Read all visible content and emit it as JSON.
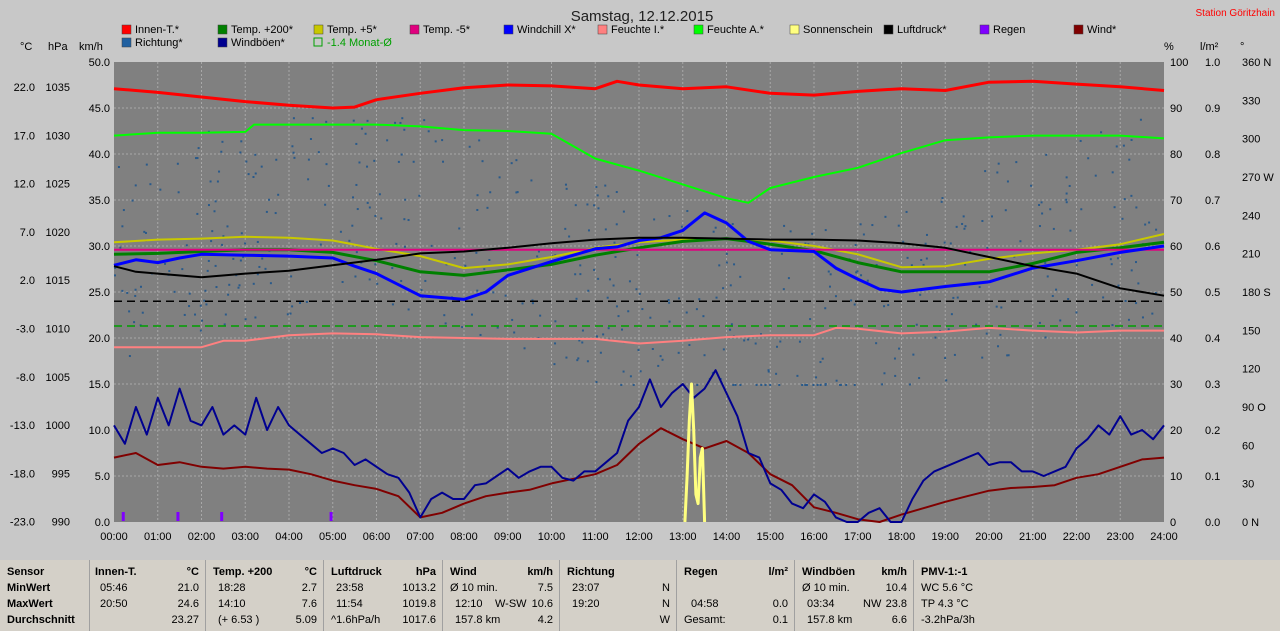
{
  "title": "Samstag, 12.12.2015",
  "station": "Station Göritzhain",
  "legend": [
    {
      "label": "Innen-T.*",
      "color": "#ff0000"
    },
    {
      "label": "Temp. +200*",
      "color": "#008000"
    },
    {
      "label": "Temp. +5*",
      "color": "#c8c800"
    },
    {
      "label": "Temp. -5*",
      "color": "#e0007f"
    },
    {
      "label": "Windchill X*",
      "color": "#0000ff"
    },
    {
      "label": "Feuchte I.*",
      "color": "#ff8080"
    },
    {
      "label": "Feuchte A.*",
      "color": "#00ff00"
    },
    {
      "label": "Sonnenschein",
      "color": "#ffff80"
    },
    {
      "label": "Luftdruck*",
      "color": "#000000"
    },
    {
      "label": "Regen",
      "color": "#8000ff"
    },
    {
      "label": "Wind*",
      "color": "#800000"
    },
    {
      "label": "Richtung*",
      "color": "#2060a0"
    },
    {
      "label": "Windböen*",
      "color": "#000090"
    },
    {
      "label": "-1.4 Monat-Ø",
      "color": "#00a000",
      "hollow": true
    }
  ],
  "axes": {
    "unit_c": "°C",
    "unit_hpa": "hPa",
    "unit_kmh": "km/h",
    "unit_pct": "%",
    "unit_rain": "l/m²",
    "unit_deg": "°",
    "temp_ticks": [
      "22.0",
      "17.0",
      "12.0",
      "7.0",
      "2.0",
      "-3.0",
      "-8.0",
      "-13.0",
      "-18.0",
      "-23.0"
    ],
    "hpa_ticks": [
      "1035",
      "1030",
      "1025",
      "1020",
      "1015",
      "1010",
      "1005",
      "1000",
      "995",
      "990"
    ],
    "kmh_ticks": [
      "50.0",
      "45.0",
      "40.0",
      "35.0",
      "30.0",
      "25.0",
      "20.0",
      "15.0",
      "10.0",
      "5.0",
      "0.0"
    ],
    "pct_ticks": [
      "100",
      "90",
      "80",
      "70",
      "60",
      "50",
      "40",
      "30",
      "20",
      "10",
      "0"
    ],
    "rain_ticks": [
      "1.0",
      "0.9",
      "0.8",
      "0.7",
      "0.6",
      "0.5",
      "0.4",
      "0.3",
      "0.2",
      "0.1",
      "0.0"
    ],
    "deg_ticks": [
      "360 N",
      "330",
      "300",
      "270 W",
      "240",
      "210",
      "180 S",
      "150",
      "120",
      "90 O",
      "60",
      "30",
      "0 N"
    ],
    "x_ticks": [
      "00:00",
      "01:00",
      "02:00",
      "03:00",
      "04:00",
      "05:00",
      "06:00",
      "07:00",
      "08:00",
      "09:00",
      "10:00",
      "11:00",
      "12:00",
      "13:00",
      "14:00",
      "15:00",
      "16:00",
      "17:00",
      "18:00",
      "19:00",
      "20:00",
      "21:00",
      "22:00",
      "23:00",
      "24:00"
    ]
  },
  "chart_data": {
    "type": "line",
    "x_unit": "hour",
    "x_range": [
      0,
      24
    ],
    "kmh_range": [
      0,
      50
    ],
    "series": [
      {
        "name": "Innen-T.*",
        "scale": "kmh",
        "color": "#ff0000",
        "width": 3,
        "x": [
          0,
          1,
          2,
          3,
          4,
          5,
          5.5,
          6,
          7,
          8,
          9,
          10,
          11,
          11.5,
          12,
          13,
          14,
          15,
          16,
          17,
          18,
          19,
          20,
          21,
          22,
          23,
          24
        ],
        "y": [
          47.1,
          46.7,
          46.2,
          45.7,
          45.3,
          45.0,
          45.1,
          45.9,
          46.6,
          47.2,
          47.5,
          47.4,
          47.1,
          47.9,
          47.5,
          47.1,
          47.3,
          46.6,
          46.4,
          46.8,
          47.1,
          46.9,
          47.8,
          47.9,
          47.6,
          47.3,
          46.9
        ]
      },
      {
        "name": "Feuchte A.*",
        "scale": "kmh",
        "color": "#00ff00",
        "width": 2,
        "x": [
          0,
          1,
          2,
          3,
          3.2,
          4,
          5,
          6,
          7,
          8,
          9,
          10,
          11,
          12,
          13,
          14,
          14.5,
          15,
          16,
          17,
          18,
          19,
          20,
          21,
          22,
          23,
          24
        ],
        "y": [
          42.0,
          42.3,
          42.3,
          42.4,
          43.2,
          43.2,
          43.2,
          43.2,
          43.0,
          42.6,
          42.5,
          42.2,
          39.5,
          38.2,
          36.7,
          35.2,
          34.7,
          36.3,
          37.5,
          38.5,
          40.1,
          41.5,
          41.8,
          42.0,
          42.0,
          42.0,
          41.7
        ]
      },
      {
        "name": "Temp. +5*",
        "scale": "kmh",
        "color": "#c8c800",
        "width": 2,
        "x": [
          0,
          1,
          2,
          3,
          4,
          5,
          6,
          7,
          8,
          9,
          10,
          11,
          12,
          13,
          14,
          15,
          16,
          17,
          18,
          19,
          20,
          21,
          22,
          23,
          24
        ],
        "y": [
          30.4,
          30.7,
          30.8,
          31.0,
          30.9,
          30.6,
          29.7,
          28.9,
          27.6,
          28.0,
          28.8,
          29.8,
          30.4,
          30.7,
          30.8,
          30.6,
          30.0,
          29.1,
          27.7,
          27.8,
          28.6,
          29.2,
          29.6,
          30.2,
          31.3
        ]
      },
      {
        "name": "Temp. +200*",
        "scale": "kmh",
        "color": "#008000",
        "width": 3,
        "x": [
          0,
          1,
          2,
          3,
          4,
          5,
          6,
          7,
          8,
          9,
          10,
          11,
          12,
          13,
          14,
          15,
          16,
          17,
          18,
          19,
          20,
          21,
          22,
          23,
          24
        ],
        "y": [
          29.1,
          29.2,
          29.4,
          29.6,
          29.6,
          29.3,
          28.4,
          27.2,
          26.8,
          27.4,
          28.0,
          29.0,
          29.8,
          30.5,
          30.8,
          30.2,
          29.5,
          28.2,
          27.2,
          27.2,
          27.2,
          28.1,
          29.3,
          29.8,
          30.4
        ]
      },
      {
        "name": "Temp. -5*",
        "scale": "kmh",
        "color": "#e0007f",
        "width": 2,
        "x": [
          0,
          24
        ],
        "y": [
          29.6,
          29.6
        ]
      },
      {
        "name": "Windchill X*",
        "scale": "kmh",
        "color": "#0000ff",
        "width": 3,
        "x": [
          0,
          0.5,
          1,
          1.5,
          2,
          3,
          4,
          5,
          5.5,
          6,
          7,
          8,
          8.5,
          9,
          10,
          11,
          11.5,
          12,
          12.5,
          13,
          13.5,
          14,
          14.5,
          15,
          16,
          16.5,
          17,
          17.5,
          18,
          18.5,
          19,
          20,
          21,
          22,
          23,
          24
        ],
        "y": [
          27.9,
          28.5,
          28.2,
          28.7,
          29.1,
          29.0,
          28.9,
          28.7,
          27.8,
          27.0,
          24.6,
          24.2,
          25.0,
          26.8,
          28.3,
          29.7,
          29.9,
          30.6,
          30.9,
          31.7,
          33.6,
          32.5,
          30.5,
          29.6,
          29.4,
          27.6,
          26.4,
          25.3,
          25.0,
          25.3,
          25.6,
          26.1,
          27.6,
          28.4,
          29.3,
          30.0
        ]
      },
      {
        "name": "Feuchte I.*",
        "scale": "kmh",
        "color": "#ff8080",
        "width": 2,
        "x": [
          0,
          1,
          2,
          2.5,
          3,
          4,
          5,
          6,
          7,
          8,
          9,
          10,
          11,
          12,
          13,
          14,
          15,
          16,
          16.5,
          17,
          18,
          19,
          20,
          21,
          22,
          23,
          24
        ],
        "y": [
          19.0,
          19.0,
          19.0,
          19.7,
          19.7,
          20.3,
          20.5,
          20.4,
          20.1,
          20.0,
          19.9,
          19.9,
          19.9,
          19.4,
          19.7,
          20.1,
          20.3,
          20.3,
          21.1,
          21.0,
          20.5,
          20.7,
          21.1,
          20.8,
          20.6,
          20.8,
          20.8
        ]
      },
      {
        "name": "Luftdruck*",
        "scale": "kmh",
        "color": "#000000",
        "width": 2,
        "x": [
          0,
          0.5,
          1,
          2,
          3,
          4,
          5,
          6,
          7,
          8,
          9,
          10,
          11,
          12,
          13,
          14,
          15,
          16,
          17,
          18,
          19,
          20,
          21,
          22,
          23,
          24
        ],
        "y": [
          27.8,
          27.2,
          27.0,
          26.6,
          27.0,
          27.3,
          27.9,
          28.5,
          29.2,
          29.4,
          29.8,
          30.3,
          30.7,
          30.9,
          30.9,
          30.8,
          30.7,
          30.7,
          30.6,
          30.3,
          29.8,
          28.8,
          27.8,
          27.0,
          25.4,
          24.6
        ]
      },
      {
        "name": "Wind*",
        "scale": "kmh",
        "color": "#800000",
        "width": 2,
        "x": [
          0,
          0.5,
          1,
          1.5,
          2,
          2.5,
          3,
          3.5,
          4,
          4.5,
          5,
          5.5,
          6,
          6.5,
          7,
          7.5,
          8,
          8.5,
          9,
          9.5,
          10,
          10.5,
          11,
          11.5,
          12,
          12.5,
          13,
          13.5,
          14,
          14.5,
          15,
          15.5,
          16,
          16.5,
          17,
          17.5,
          18,
          18.5,
          19,
          19.5,
          20,
          20.5,
          21,
          21.5,
          22,
          22.5,
          23,
          23.5,
          24
        ],
        "y": [
          7.0,
          7.5,
          6.2,
          6.5,
          6.0,
          5.8,
          6.0,
          5.8,
          5.7,
          5.2,
          4.5,
          4.0,
          3.6,
          2.8,
          0.5,
          1.0,
          2.0,
          2.8,
          3.2,
          3.5,
          4.2,
          4.7,
          5.2,
          6.2,
          8.5,
          10.2,
          9.0,
          8.0,
          8.8,
          7.5,
          5.2,
          4.0,
          1.6,
          1.0,
          0.3,
          0.0,
          0.8,
          1.5,
          2.2,
          2.8,
          3.4,
          3.7,
          3.8,
          4.0,
          4.8,
          5.2,
          6.0,
          6.8,
          7.0
        ]
      },
      {
        "name": "Windböen*",
        "scale": "kmh",
        "color": "#000090",
        "width": 2,
        "x": [
          0,
          0.25,
          0.5,
          0.75,
          1,
          1.25,
          1.5,
          1.75,
          2,
          2.25,
          2.5,
          2.75,
          3,
          3.25,
          3.5,
          3.75,
          4,
          4.25,
          4.5,
          4.75,
          5,
          5.25,
          5.5,
          5.75,
          6,
          6.25,
          6.5,
          6.75,
          7,
          7.25,
          7.5,
          7.75,
          8,
          8.25,
          8.5,
          8.75,
          9,
          9.25,
          9.5,
          9.75,
          10,
          10.25,
          10.5,
          10.75,
          11,
          11.25,
          11.5,
          11.75,
          12,
          12.25,
          12.5,
          12.75,
          13,
          13.25,
          13.5,
          13.75,
          14,
          14.25,
          14.5,
          14.75,
          15,
          15.25,
          15.5,
          15.75,
          16,
          16.25,
          16.5,
          16.75,
          17,
          17.25,
          17.5,
          17.75,
          18,
          18.25,
          18.5,
          18.75,
          19,
          19.25,
          19.5,
          19.75,
          20,
          20.25,
          20.5,
          20.75,
          21,
          21.25,
          21.5,
          21.75,
          22,
          22.25,
          22.5,
          22.75,
          23,
          23.25,
          23.5,
          23.75,
          24
        ],
        "y": [
          10.5,
          8.5,
          12.5,
          9.5,
          13.5,
          10.5,
          14.5,
          11.0,
          10.5,
          12.5,
          9.5,
          10.5,
          9.5,
          13.5,
          10.0,
          12.5,
          10.5,
          9.5,
          8.5,
          7.5,
          8.0,
          7.5,
          6.2,
          6.8,
          6.0,
          5.2,
          4.8,
          3.2,
          0.5,
          2.5,
          3.2,
          2.5,
          2.5,
          4.0,
          4.2,
          5.0,
          5.8,
          4.8,
          5.5,
          6.0,
          6.0,
          4.8,
          4.5,
          5.5,
          5.5,
          6.5,
          7.5,
          11.0,
          12.5,
          15.5,
          12.5,
          14.0,
          15.0,
          13.5,
          14.5,
          16.5,
          14.0,
          11.5,
          7.5,
          7.0,
          4.2,
          3.5,
          2.0,
          1.5,
          3.0,
          2.2,
          0.5,
          0.0,
          0.0,
          1.0,
          1.5,
          0.0,
          0.0,
          2.5,
          4.5,
          5.5,
          6.0,
          6.5,
          7.0,
          7.5,
          6.2,
          6.5,
          6.5,
          5.5,
          5.5,
          5.0,
          5.5,
          6.0,
          8.0,
          9.0,
          10.5,
          9.5,
          11.5,
          9.5,
          10.0,
          9.0,
          10.5
        ]
      },
      {
        "name": "Sonnenschein",
        "scale": "kmh",
        "color": "#ffff80",
        "width": 3,
        "x": [
          13.05,
          13.1,
          13.15,
          13.2,
          13.25,
          13.3,
          13.35,
          13.4,
          13.45,
          13.5
        ],
        "y": [
          0,
          5,
          11,
          15,
          10,
          3,
          2,
          7,
          8,
          0
        ]
      }
    ],
    "dashed_lines": [
      {
        "name": "Monat-Ø",
        "scale": "kmh",
        "y": 21.3,
        "color": "#00a000"
      },
      {
        "name": "Reference",
        "scale": "kmh",
        "y": 24.0,
        "color": "#000000"
      }
    ],
    "rain_marks_hours": [
      0.2,
      1.45,
      2.45,
      4.95
    ],
    "direction_dots_note": "scatter of wind direction samples (Richtung*)"
  },
  "table": {
    "labels": {
      "sensor": "Sensor",
      "min": "MinWert",
      "max": "MaxWert",
      "avg": "Durchschnitt"
    },
    "innen": {
      "title": "Innen-T.",
      "unit": "°C",
      "min_t": "05:46",
      "min_v": "21.0",
      "max_t": "20:50",
      "max_v": "24.6",
      "avg_v": "23.27"
    },
    "temp200": {
      "title": "Temp. +200",
      "unit": "°C",
      "min_t": "18:28",
      "min_v": "2.7",
      "max_t": "14:10",
      "max_v": "7.6",
      "avg_t": "(+ 6.53 )",
      "avg_v": "5.09"
    },
    "druck": {
      "title": "Luftdruck",
      "unit": "hPa",
      "min_t": "23:58",
      "min_v": "1013.2",
      "max_t": "11:54",
      "max_v": "1019.8",
      "avg_t": "^1.6hPa/h",
      "avg_v": "1017.6"
    },
    "wind": {
      "title": "Wind",
      "unit": "km/h",
      "min_t": "Ø 10 min.",
      "min_v": "7.5",
      "max_t": "12:10",
      "max_d": "W-SW",
      "max_v": "10.6",
      "avg_t": "157.8 km",
      "avg_v": "4.2"
    },
    "richtung": {
      "title": "Richtung",
      "min_t": "23:07",
      "min_v": "N",
      "max_t": "19:20",
      "max_v": "N",
      "avg_v": "W"
    },
    "regen": {
      "title": "Regen",
      "unit": "l/m²",
      "max_t": "04:58",
      "max_v": "0.0",
      "avg_t": "Gesamt:",
      "avg_v": "0.1"
    },
    "boeen": {
      "title": "Windböen",
      "unit": "km/h",
      "min_t": "Ø 10 min.",
      "min_v": "10.4",
      "max_t": "03:34",
      "max_d": "NW",
      "max_v": "23.8",
      "avg_t": "157.8 km",
      "avg_v": "6.6"
    },
    "pmv": {
      "title": "PMV-1:-1",
      "l1": "WC 5.6 °C",
      "l2": "TP 4.3 °C",
      "l3": "-3.2hPa/3h"
    }
  }
}
